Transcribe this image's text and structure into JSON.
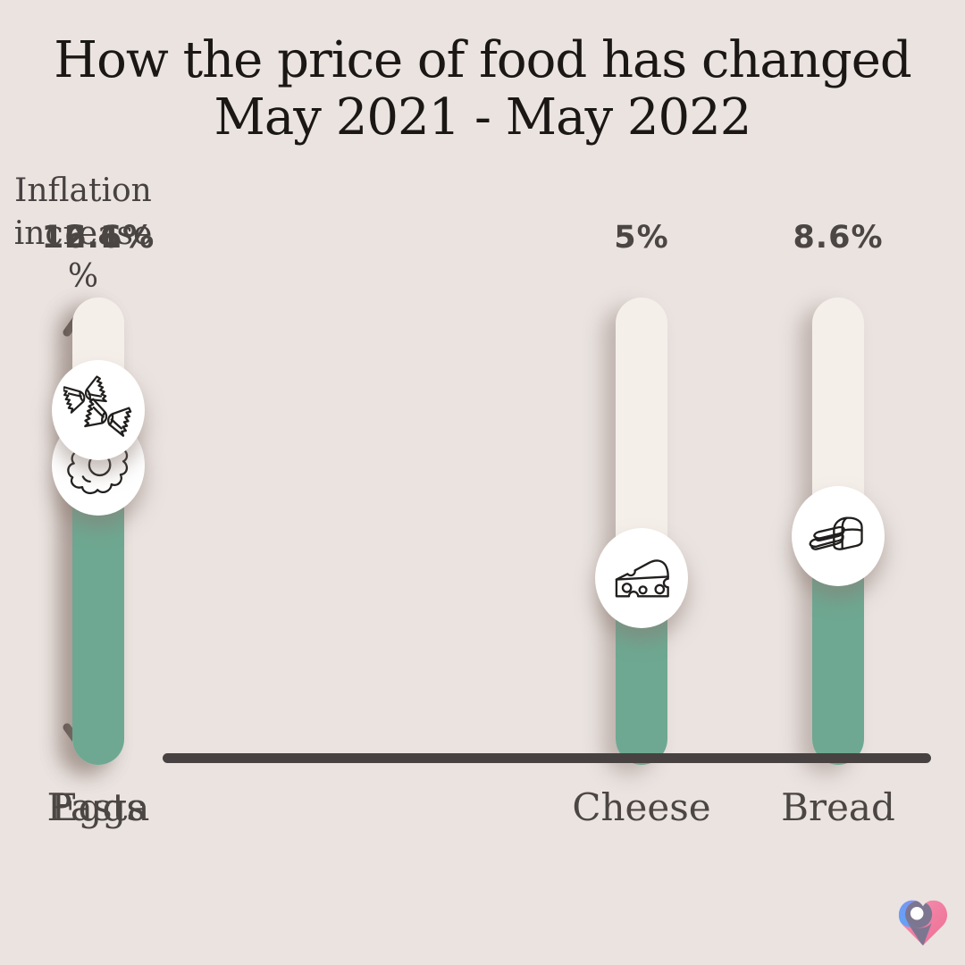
{
  "title": {
    "line1": "How the price of food has changed",
    "line2": "May 2021 - May 2022"
  },
  "y_axis": {
    "line1": "Inflation",
    "line2": "increase",
    "line3": "%"
  },
  "chart_data": {
    "type": "bar",
    "title": "How the price of food has changed",
    "subtitle": "May 2021 - May 2022",
    "ylabel": "Inflation increase %",
    "unit": "%",
    "categories": [
      "Cheese",
      "Bread",
      "Eggs",
      "Pasta"
    ],
    "values": [
      5,
      8.6,
      12.6,
      16.1
    ],
    "value_labels": [
      "5%",
      "8.6%",
      "12.6%",
      "16.1%"
    ],
    "layout": {
      "grid": false,
      "legend": false,
      "value_labels_position": "above-bars"
    },
    "items": [
      {
        "label": "Cheese",
        "value": 5,
        "value_label": "5%",
        "icon": "cheese-icon",
        "fill_fraction": 0.4
      },
      {
        "label": "Bread",
        "value": 8.6,
        "value_label": "8.6%",
        "icon": "bread-icon",
        "fill_fraction": 0.49
      },
      {
        "label": "Eggs",
        "value": 12.6,
        "value_label": "12.6%",
        "icon": "egg-icon",
        "fill_fraction": 0.64
      },
      {
        "label": "Pasta",
        "value": 16.1,
        "value_label": "16.1%",
        "icon": "pasta-icon",
        "fill_fraction": 0.76
      }
    ]
  },
  "colors": {
    "background": "#EAE3E0",
    "bar_track": "#F5EFEA",
    "bar_fill": "#6EA892",
    "axis": "#474241",
    "title_text": "#1A1715",
    "label_text": "#4B4643"
  },
  "logo": {
    "name": "heart-logo",
    "colors": {
      "blue": "#7BA3F5",
      "pink": "#F0829F",
      "plum": "#7D7691",
      "hole": "#FFFFFF"
    }
  }
}
